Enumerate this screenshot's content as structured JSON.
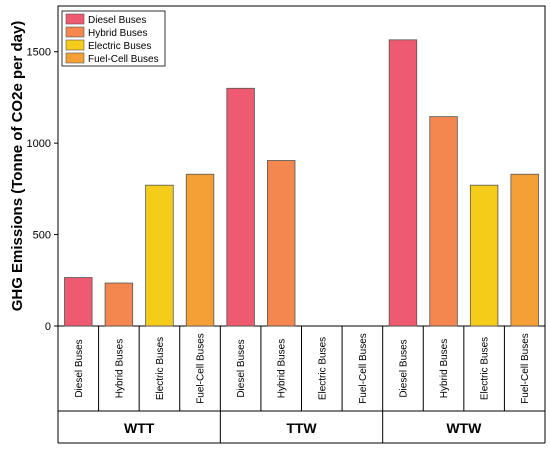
{
  "chart_data": {
    "type": "bar",
    "ylabel": "GHG Emissions (Tonne of CO2e per day)",
    "xlabel": "",
    "ylim": [
      0,
      1750
    ],
    "yticks": [
      0,
      500,
      1000,
      1500
    ],
    "grid": false,
    "legend_position": "top-left",
    "series": [
      {
        "name": "Diesel Buses",
        "color": "#EE5A6F"
      },
      {
        "name": "Hybrid Buses",
        "color": "#F4874F"
      },
      {
        "name": "Electric Buses",
        "color": "#F6CC1B"
      },
      {
        "name": "Fuel-Cell Buses",
        "color": "#F4A037"
      }
    ],
    "groups": [
      {
        "label": "WTT",
        "categories": [
          "Diesel Buses",
          "Hybrid Buses",
          "Electric Buses",
          "Fuel-Cell Buses"
        ],
        "values": [
          265,
          235,
          770,
          830
        ]
      },
      {
        "label": "TTW",
        "categories": [
          "Diesel Buses",
          "Hybrid Buses",
          "Electric Buses",
          "Fuel-Cell Buses"
        ],
        "values": [
          1300,
          905,
          0,
          0
        ]
      },
      {
        "label": "WTW",
        "categories": [
          "Diesel Buses",
          "Hybrid Buses",
          "Electric Buses",
          "Fuel-Cell Buses"
        ],
        "values": [
          1565,
          1145,
          770,
          830
        ]
      }
    ]
  }
}
